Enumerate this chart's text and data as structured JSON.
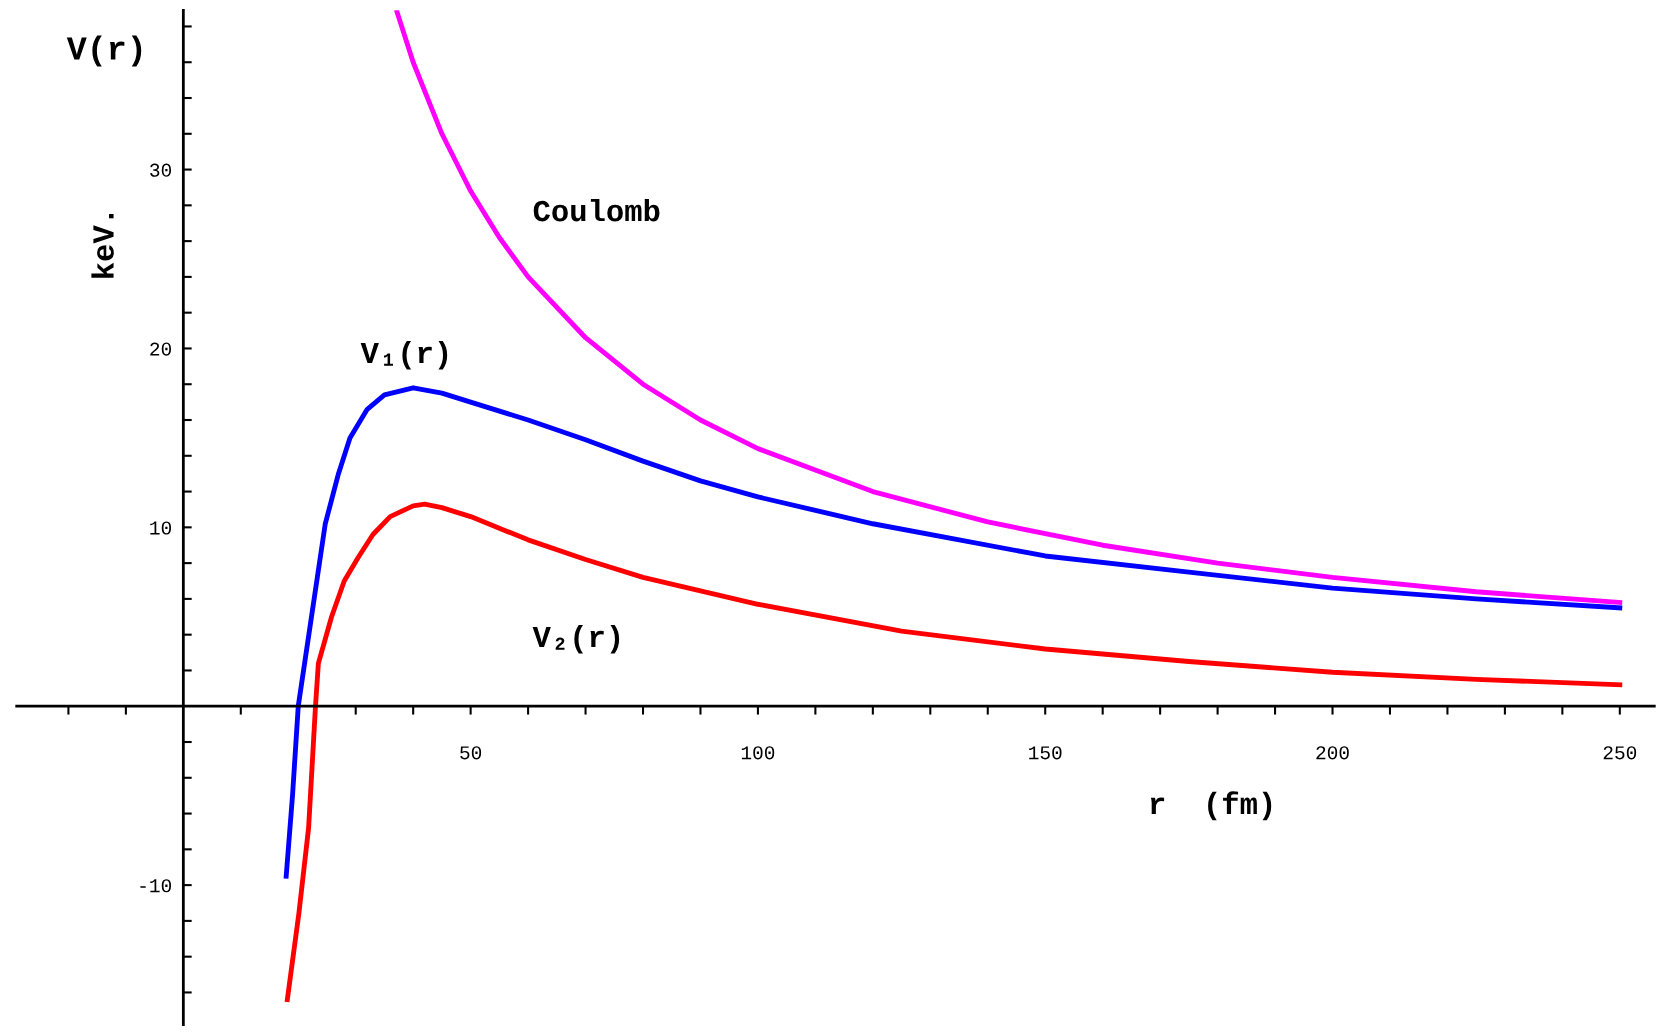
{
  "chart_data": {
    "type": "line",
    "xlabel": "r  (fm)",
    "ylabel": "keV.",
    "annotations": [
      "V(r)"
    ],
    "xlim": [
      -29,
      256
    ],
    "ylim": [
      -17.8,
      38.9
    ],
    "xticks": [
      {
        "value": -20,
        "label": null
      },
      {
        "value": -10,
        "label": null
      },
      {
        "value": 10,
        "label": null
      },
      {
        "value": 20,
        "label": null
      },
      {
        "value": 30,
        "label": null
      },
      {
        "value": 40,
        "label": null
      },
      50,
      {
        "value": 60,
        "label": null
      },
      {
        "value": 70,
        "label": null
      },
      {
        "value": 80,
        "label": null
      },
      {
        "value": 90,
        "label": null
      },
      100,
      {
        "value": 110,
        "label": null
      },
      {
        "value": 120,
        "label": null
      },
      {
        "value": 130,
        "label": null
      },
      {
        "value": 140,
        "label": null
      },
      150,
      {
        "value": 160,
        "label": null
      },
      {
        "value": 170,
        "label": null
      },
      {
        "value": 180,
        "label": null
      },
      {
        "value": 190,
        "label": null
      },
      200,
      {
        "value": 210,
        "label": null
      },
      {
        "value": 220,
        "label": null
      },
      {
        "value": 230,
        "label": null
      },
      {
        "value": 240,
        "label": null
      },
      250
    ],
    "yticks": [
      {
        "value": -16,
        "label": null
      },
      {
        "value": -14,
        "label": null
      },
      {
        "value": -12,
        "label": null
      },
      -10,
      {
        "value": -8,
        "label": null
      },
      {
        "value": -6,
        "label": null
      },
      {
        "value": -4,
        "label": null
      },
      {
        "value": -2,
        "label": null
      },
      {
        "value": 2,
        "label": null
      },
      {
        "value": 4,
        "label": null
      },
      {
        "value": 6,
        "label": null
      },
      {
        "value": 8,
        "label": null
      },
      10,
      {
        "value": 12,
        "label": null
      },
      {
        "value": 14,
        "label": null
      },
      {
        "value": 16,
        "label": null
      },
      {
        "value": 18,
        "label": null
      },
      20,
      {
        "value": 22,
        "label": null
      },
      {
        "value": 24,
        "label": null
      },
      {
        "value": 26,
        "label": null
      },
      {
        "value": 28,
        "label": null
      },
      30,
      {
        "value": 32,
        "label": null
      },
      {
        "value": 34,
        "label": null
      },
      {
        "value": 36,
        "label": null
      },
      {
        "value": 38,
        "label": null
      }
    ],
    "grid": false,
    "legend": false,
    "marker": "none",
    "line_style": "solid",
    "series": [
      {
        "name": "Coulomb",
        "color": "#ff00ff",
        "x": [
          37.2,
          40,
          45,
          50,
          55,
          60,
          70,
          80,
          90,
          100,
          120,
          140,
          160,
          180,
          200,
          225,
          250
        ],
        "values": [
          38.8,
          36,
          32,
          28.8,
          26.2,
          24,
          20.6,
          18,
          16,
          14.4,
          12,
          10.3,
          9,
          8,
          7.2,
          6.4,
          5.8
        ]
      },
      {
        "name": "V₁(r)",
        "color": "#0000ff",
        "x": [
          17.9,
          19,
          20,
          22.3,
          24.7,
          27,
          29,
          32,
          35,
          40,
          45,
          50,
          60,
          70,
          80,
          90,
          100,
          120,
          150,
          175,
          200,
          225,
          250
        ],
        "values": [
          -9.5,
          -5,
          0,
          5,
          10.2,
          13,
          15,
          16.6,
          17.4,
          17.8,
          17.5,
          17,
          16,
          14.9,
          13.7,
          12.6,
          11.7,
          10.2,
          8.4,
          7.5,
          6.6,
          6,
          5.5
        ]
      },
      {
        "name": "V₂(r)",
        "color": "#ff0000",
        "x": [
          18.1,
          20.1,
          21.8,
          23,
          23.5,
          25.8,
          28,
          30.4,
          33,
          36,
          40,
          42,
          45,
          50,
          60,
          70,
          80,
          100,
          125,
          150,
          175,
          200,
          225,
          250
        ],
        "values": [
          -16.4,
          -11.6,
          -6.8,
          0,
          2.4,
          5,
          7,
          8.3,
          9.6,
          10.6,
          11.2,
          11.3,
          11.1,
          10.6,
          9.3,
          8.2,
          7.2,
          5.7,
          4.2,
          3.2,
          2.5,
          1.9,
          1.5,
          1.2
        ]
      }
    ]
  }
}
